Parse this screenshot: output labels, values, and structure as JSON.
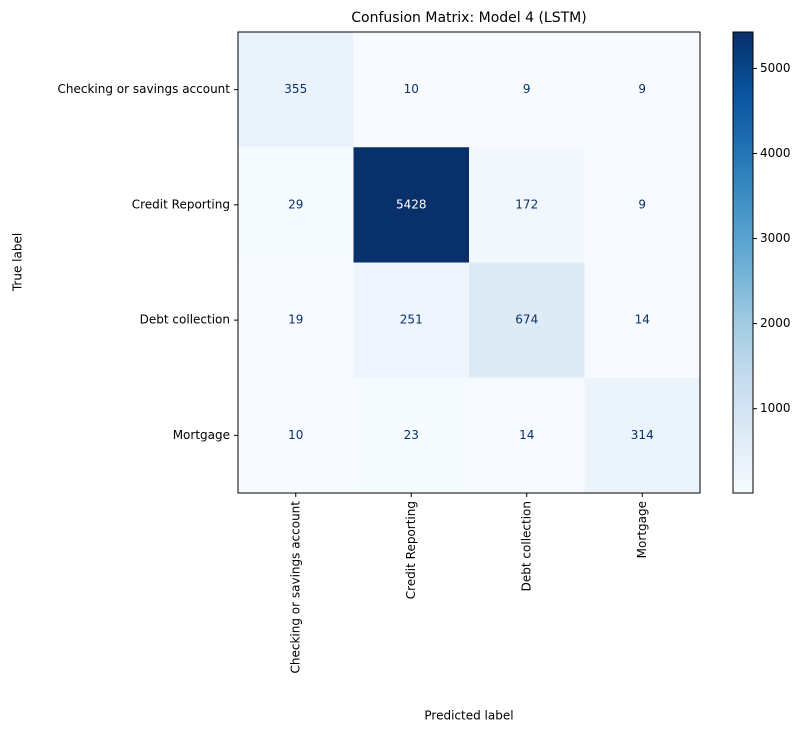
{
  "chart_data": {
    "type": "heatmap",
    "title": "Confusion Matrix: Model 4 (LSTM)",
    "x_label": "Predicted label",
    "y_label": "True label",
    "x_categories": [
      "Checking or savings account",
      "Credit Reporting",
      "Debt collection",
      "Mortgage"
    ],
    "y_categories": [
      "Checking or savings account",
      "Credit Reporting",
      "Debt collection",
      "Mortgage"
    ],
    "values": [
      [
        355,
        10,
        9,
        9
      ],
      [
        29,
        5428,
        172,
        9
      ],
      [
        19,
        251,
        674,
        14
      ],
      [
        10,
        23,
        14,
        314
      ]
    ],
    "colormap": "Blues",
    "clim": [
      9,
      5428
    ],
    "cticks": [
      1000,
      2000,
      3000,
      4000,
      5000
    ]
  }
}
